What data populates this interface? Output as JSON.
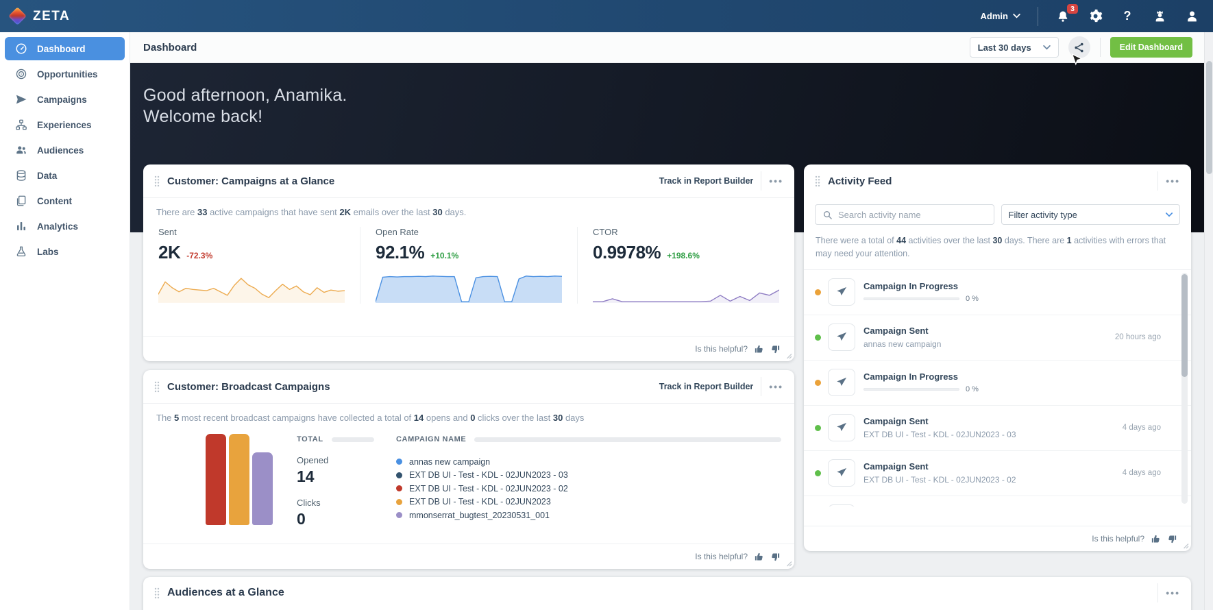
{
  "navbar": {
    "brand": "ZETA",
    "admin_label": "Admin",
    "notification_count": "3"
  },
  "sidebar": {
    "items": [
      {
        "label": "Dashboard",
        "icon": "gauge",
        "active": true
      },
      {
        "label": "Opportunities",
        "icon": "target",
        "active": false
      },
      {
        "label": "Campaigns",
        "icon": "paper-plane",
        "active": false
      },
      {
        "label": "Experiences",
        "icon": "sitemap",
        "active": false
      },
      {
        "label": "Audiences",
        "icon": "people",
        "active": false
      },
      {
        "label": "Data",
        "icon": "database",
        "active": false
      },
      {
        "label": "Content",
        "icon": "pages",
        "active": false
      },
      {
        "label": "Analytics",
        "icon": "bar-chart",
        "active": false
      },
      {
        "label": "Labs",
        "icon": "flask",
        "active": false
      }
    ]
  },
  "header": {
    "title": "Dashboard",
    "date_range": "Last 30 days",
    "edit_button": "Edit Dashboard"
  },
  "greeting": {
    "line1": "Good afternoon, Anamika.",
    "line2": "Welcome back!"
  },
  "common": {
    "helpful_label": "Is this helpful?",
    "track_label": "Track in Report Builder",
    "menu_dots": "•••"
  },
  "cards": {
    "glance": {
      "title": "Customer: Campaigns at a Glance",
      "summary": [
        {
          "t": "There are "
        },
        {
          "t": "33",
          "b": true
        },
        {
          "t": " active campaigns that have sent "
        },
        {
          "t": "2K",
          "b": true
        },
        {
          "t": " emails over the last "
        },
        {
          "t": "30",
          "b": true
        },
        {
          "t": " days."
        }
      ],
      "stats": [
        {
          "label": "Sent",
          "value": "2K",
          "delta": "-72.3%",
          "delta_color": "#c23b2e"
        },
        {
          "label": "Open Rate",
          "value": "92.1%",
          "delta": "+10.1%",
          "delta_color": "#2f9e44"
        },
        {
          "label": "CTOR",
          "value": "0.9978%",
          "delta": "+198.6%",
          "delta_color": "#2f9e44"
        }
      ]
    },
    "broadcast": {
      "title": "Customer: Broadcast Campaigns",
      "summary": [
        {
          "t": "The "
        },
        {
          "t": "5",
          "b": true
        },
        {
          "t": " most recent broadcast campaigns have collected a total of "
        },
        {
          "t": "14",
          "b": true
        },
        {
          "t": " opens and "
        },
        {
          "t": "0",
          "b": true
        },
        {
          "t": " clicks over the last "
        },
        {
          "t": "30",
          "b": true
        },
        {
          "t": " days"
        }
      ],
      "total_header": "TOTAL",
      "name_header": "CAMPAIGN NAME",
      "opened_label": "Opened",
      "opened_value": "14",
      "clicks_label": "Clicks",
      "clicks_value": "0",
      "legend": [
        {
          "label": "annas new campaign",
          "color": "#4a90e2"
        },
        {
          "label": "EXT DB UI - Test - KDL - 02JUN2023 - 03",
          "color": "#33536e"
        },
        {
          "label": "EXT DB UI - Test - KDL - 02JUN2023 - 02",
          "color": "#c0392b"
        },
        {
          "label": "EXT DB UI - Test - KDL - 02JUN2023",
          "color": "#e8a33d"
        },
        {
          "label": "mmonserrat_bugtest_20230531_001",
          "color": "#9b8fc7"
        }
      ]
    },
    "activity": {
      "title": "Activity Feed",
      "search_placeholder": "Search activity name",
      "filter_label": "Filter activity type",
      "summary": [
        {
          "t": "There were a total of "
        },
        {
          "t": "44",
          "b": true
        },
        {
          "t": " activities over the last "
        },
        {
          "t": "30",
          "b": true
        },
        {
          "t": " days. There are "
        },
        {
          "t": "1",
          "b": true
        },
        {
          "t": " activities with errors that may need your attention."
        }
      ],
      "items": [
        {
          "status_color": "#eba239",
          "title": "Campaign In Progress",
          "progress": "0 %"
        },
        {
          "status_color": "#5fbf4a",
          "title": "Campaign Sent",
          "subtitle": "annas new campaign",
          "time": "20 hours ago"
        },
        {
          "status_color": "#eba239",
          "title": "Campaign In Progress",
          "progress": "0 %"
        },
        {
          "status_color": "#5fbf4a",
          "title": "Campaign Sent",
          "subtitle": "EXT DB UI - Test - KDL - 02JUN2023 - 03",
          "time": "4 days ago"
        },
        {
          "status_color": "#5fbf4a",
          "title": "Campaign Sent",
          "subtitle": "EXT DB UI - Test - KDL - 02JUN2023 - 02",
          "time": "4 days ago"
        }
      ]
    },
    "audiences": {
      "title": "Audiences at a Glance"
    }
  },
  "colors": {
    "accent_blue": "#4a90e2",
    "edit_button_green": "#72bf44",
    "navbar_blue": "#214a72",
    "negative_red": "#c23b2e",
    "positive_green": "#2f9e44"
  },
  "chart_data": [
    {
      "type": "area",
      "title": "Sent — 30 day sparkline (unlabeled axis, estimated relative values)",
      "values": [
        30,
        72,
        52,
        38,
        50,
        46,
        44,
        42,
        50,
        38,
        26,
        60,
        84,
        62,
        50,
        30,
        18,
        42,
        64,
        46,
        58,
        38,
        28,
        52,
        36,
        44,
        40,
        42
      ],
      "color": "#ecaa4e",
      "fill_opacity": 0.12,
      "ylim": [
        0,
        100
      ]
    },
    {
      "type": "area",
      "title": "Open Rate — 30 day sparkline (unlabeled axis, estimated relative values)",
      "values": [
        4,
        88,
        90,
        89,
        90,
        90,
        91,
        90,
        92,
        91,
        90,
        90,
        4,
        4,
        86,
        90,
        91,
        90,
        4,
        4,
        82,
        92,
        90,
        91,
        90,
        92,
        91
      ],
      "color": "#4a90e2",
      "fill_opacity": 0.3,
      "ylim": [
        0,
        100
      ]
    },
    {
      "type": "area",
      "title": "CTOR — 30 day sparkline (unlabeled axis, estimated relative values)",
      "values": [
        4,
        4,
        14,
        4,
        4,
        4,
        4,
        4,
        4,
        4,
        4,
        4,
        6,
        26,
        6,
        22,
        8,
        34,
        26,
        44
      ],
      "color": "#8e7cc3",
      "fill_opacity": 0.12,
      "ylim": [
        0,
        100
      ]
    },
    {
      "type": "bar",
      "title": "Broadcast campaigns — opens per campaign (values estimated from bar heights; total opens 14, clicks 0)",
      "categories": [
        "annas new campaign",
        "EXT DB UI - Test - KDL - 02JUN2023 - 03",
        "EXT DB UI - Test - KDL - 02JUN2023 - 02",
        "EXT DB UI - Test - KDL - 02JUN2023",
        "mmonserrat_bugtest_20230531_001"
      ],
      "values": [
        0,
        0,
        5,
        5,
        4
      ],
      "colors": [
        "#4a90e2",
        "#33536e",
        "#c0392b",
        "#e8a33d",
        "#9b8fc7"
      ],
      "ylabel": "Opened",
      "legend_position": "right"
    }
  ]
}
